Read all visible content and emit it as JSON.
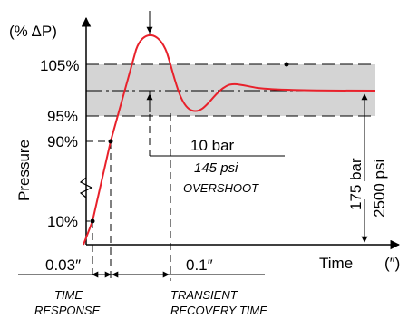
{
  "axis": {
    "y_unit": "(% ΔP)",
    "y_title": "Pressure",
    "x_title": "Time",
    "x_unit": "(″)"
  },
  "levels": {
    "l105": "105%",
    "l95": "95%",
    "l90": "90%",
    "l10": "10%"
  },
  "annotations": {
    "overshoot_bar": "10 bar",
    "overshoot_psi": "145 psi",
    "overshoot_label": "OVERSHOOT",
    "total_bar": "175 bar",
    "total_psi": "2500 psi",
    "time_response_value": "0.03″",
    "recovery_value": "0.1″",
    "time_response_line1": "TIME",
    "time_response_line2": "RESPONSE",
    "recovery_line1": "TRANSIENT",
    "recovery_line2": "RECOVERY TIME"
  },
  "colors": {
    "curve": "#e8212b",
    "band": "#d4d4d4",
    "ink": "#000000"
  }
}
